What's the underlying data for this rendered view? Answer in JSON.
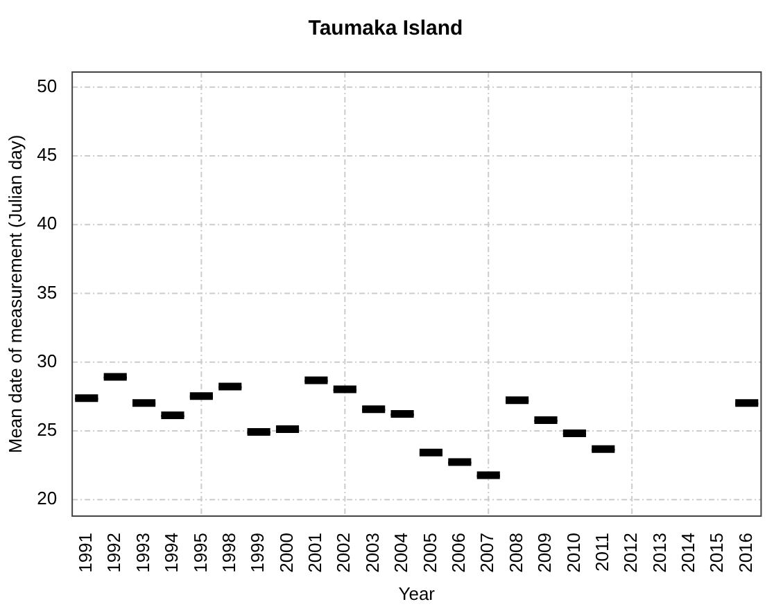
{
  "chart_data": {
    "type": "box",
    "title": "Taumaka Island",
    "xlabel": "Year",
    "ylabel": "Mean date of measurement (Julian day)",
    "categories": [
      "1991",
      "1992",
      "1993",
      "1994",
      "1995",
      "1998",
      "1999",
      "2000",
      "2001",
      "2002",
      "2003",
      "2004",
      "2005",
      "2006",
      "2007",
      "2008",
      "2009",
      "2010",
      "2011",
      "2012",
      "2013",
      "2014",
      "2015",
      "2016"
    ],
    "boxes": [
      {
        "low": 27.25,
        "q1": 27.25,
        "median": 27.25,
        "q3": 27.25,
        "high": 27.25
      },
      {
        "low": 28.8,
        "q1": 28.8,
        "median": 28.8,
        "q3": 28.8,
        "high": 28.8
      },
      {
        "low": 26.9,
        "q1": 26.9,
        "median": 26.9,
        "q3": 26.9,
        "high": 26.9
      },
      {
        "low": 26,
        "q1": 26,
        "median": 26,
        "q3": 26,
        "high": 26
      },
      {
        "low": 27.4,
        "q1": 27.4,
        "median": 27.4,
        "q3": 27.4,
        "high": 27.4
      },
      {
        "low": 28.1,
        "q1": 28.1,
        "median": 28.1,
        "q3": 28.1,
        "high": 28.1
      },
      {
        "low": 24.8,
        "q1": 24.8,
        "median": 24.8,
        "q3": 24.8,
        "high": 24.8
      },
      {
        "low": 25,
        "q1": 25,
        "median": 25,
        "q3": 25,
        "high": 25
      },
      {
        "low": 28.55,
        "q1": 28.55,
        "median": 28.55,
        "q3": 28.55,
        "high": 28.55
      },
      {
        "low": 27.9,
        "q1": 27.9,
        "median": 27.9,
        "q3": 27.9,
        "high": 27.9
      },
      {
        "low": 26.45,
        "q1": 26.45,
        "median": 26.45,
        "q3": 26.45,
        "high": 26.45
      },
      {
        "low": 26.1,
        "q1": 26.1,
        "median": 26.1,
        "q3": 26.1,
        "high": 26.1
      },
      {
        "low": 23.3,
        "q1": 23.3,
        "median": 23.3,
        "q3": 23.3,
        "high": 23.3
      },
      {
        "low": 22.6,
        "q1": 22.6,
        "median": 22.6,
        "q3": 22.6,
        "high": 22.6
      },
      {
        "low": 21.65,
        "q1": 21.65,
        "median": 21.65,
        "q3": 21.65,
        "high": 21.65
      },
      {
        "low": 27.1,
        "q1": 27.1,
        "median": 27.1,
        "q3": 27.1,
        "high": 27.1
      },
      {
        "low": 25.65,
        "q1": 25.65,
        "median": 25.65,
        "q3": 25.65,
        "high": 25.65
      },
      {
        "low": 24.7,
        "q1": 24.7,
        "median": 24.7,
        "q3": 24.7,
        "high": 24.7
      },
      {
        "low": 23.55,
        "q1": 23.55,
        "median": 23.55,
        "q3": 23.55,
        "high": 23.55
      },
      null,
      null,
      null,
      null,
      {
        "low": 26.9,
        "q1": 26.9,
        "median": 26.9,
        "q3": 26.9,
        "high": 26.9
      }
    ],
    "color": "#000000",
    "ylim": [
      18.8,
      51.1
    ],
    "yticks": [
      20,
      25,
      30,
      35,
      40,
      45,
      50
    ],
    "grid": true,
    "legend": false
  }
}
